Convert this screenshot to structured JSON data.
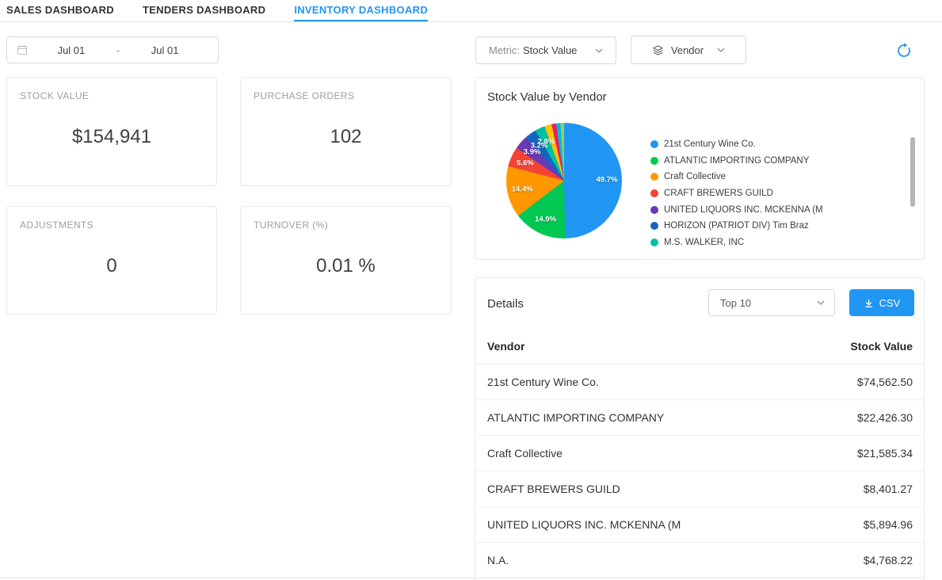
{
  "tabs": [
    {
      "label": "SALES DASHBOARD",
      "active": false
    },
    {
      "label": "TENDERS DASHBOARD",
      "active": false
    },
    {
      "label": "INVENTORY DASHBOARD",
      "active": true
    }
  ],
  "toolbar": {
    "date_start": "Jul 01",
    "date_separator": "-",
    "date_end": "Jul 01",
    "metric_label": "Metric:",
    "metric_value": "Stock Value",
    "dimension_value": "Vendor"
  },
  "kpis": [
    {
      "title": "STOCK VALUE",
      "value": "$154,941"
    },
    {
      "title": "PURCHASE ORDERS",
      "value": "102"
    },
    {
      "title": "ADJUSTMENTS",
      "value": "0"
    },
    {
      "title": "TURNOVER (%)",
      "value": "0.01 %"
    }
  ],
  "chart_card": {
    "title": "Stock Value by Vendor"
  },
  "chart_data": {
    "type": "pie",
    "title": "Stock Value by Vendor",
    "legend_position": "right",
    "slices": [
      {
        "label": "21st Century Wine Co.",
        "pct": 49.7,
        "pct_label": "49.7%",
        "color": "#2196f3"
      },
      {
        "label": "ATLANTIC IMPORTING COMPANY",
        "pct": 14.9,
        "pct_label": "14.9%",
        "color": "#00c853"
      },
      {
        "label": "Craft Collective",
        "pct": 14.4,
        "pct_label": "14.4%",
        "color": "#ff9800"
      },
      {
        "label": "CRAFT BREWERS GUILD",
        "pct": 5.6,
        "pct_label": "5.6%",
        "color": "#f44336"
      },
      {
        "label": "UNITED LIQUORS INC. MCKENNA (M",
        "pct": 3.9,
        "pct_label": "3.9%",
        "color": "#673ab7"
      },
      {
        "label": "HORIZON (PATRIOT DIV) Tim Braz",
        "pct": 3.2,
        "pct_label": "3.2%",
        "color": "#1565c0"
      },
      {
        "label": "M.S. WALKER, INC",
        "pct": 2.8,
        "pct_label": "2.8%",
        "color": "#00bfa5"
      }
    ],
    "other_slices": [
      {
        "pct": 2.0,
        "color": "#ffc107"
      },
      {
        "pct": 1.3,
        "color": "#e91e63"
      },
      {
        "pct": 1.2,
        "color": "#00bcd4"
      },
      {
        "pct": 1.0,
        "color": "#9ccc65"
      }
    ]
  },
  "details": {
    "title": "Details",
    "filter_value": "Top 10",
    "csv_label": "CSV",
    "columns": [
      "Vendor",
      "Stock Value"
    ],
    "rows": [
      [
        "21st Century Wine Co.",
        "$74,562.50"
      ],
      [
        "ATLANTIC IMPORTING COMPANY",
        "$22,426.30"
      ],
      [
        "Craft Collective",
        "$21,585.34"
      ],
      [
        "CRAFT BREWERS GUILD",
        "$8,401.27"
      ],
      [
        "UNITED LIQUORS INC. MCKENNA (M",
        "$5,894.96"
      ],
      [
        "N.A.",
        "$4,768.22"
      ]
    ]
  },
  "colors": {
    "accent_blue": "#2196f3",
    "border": "#e9e9e9",
    "muted_text": "#9e9e9e"
  }
}
